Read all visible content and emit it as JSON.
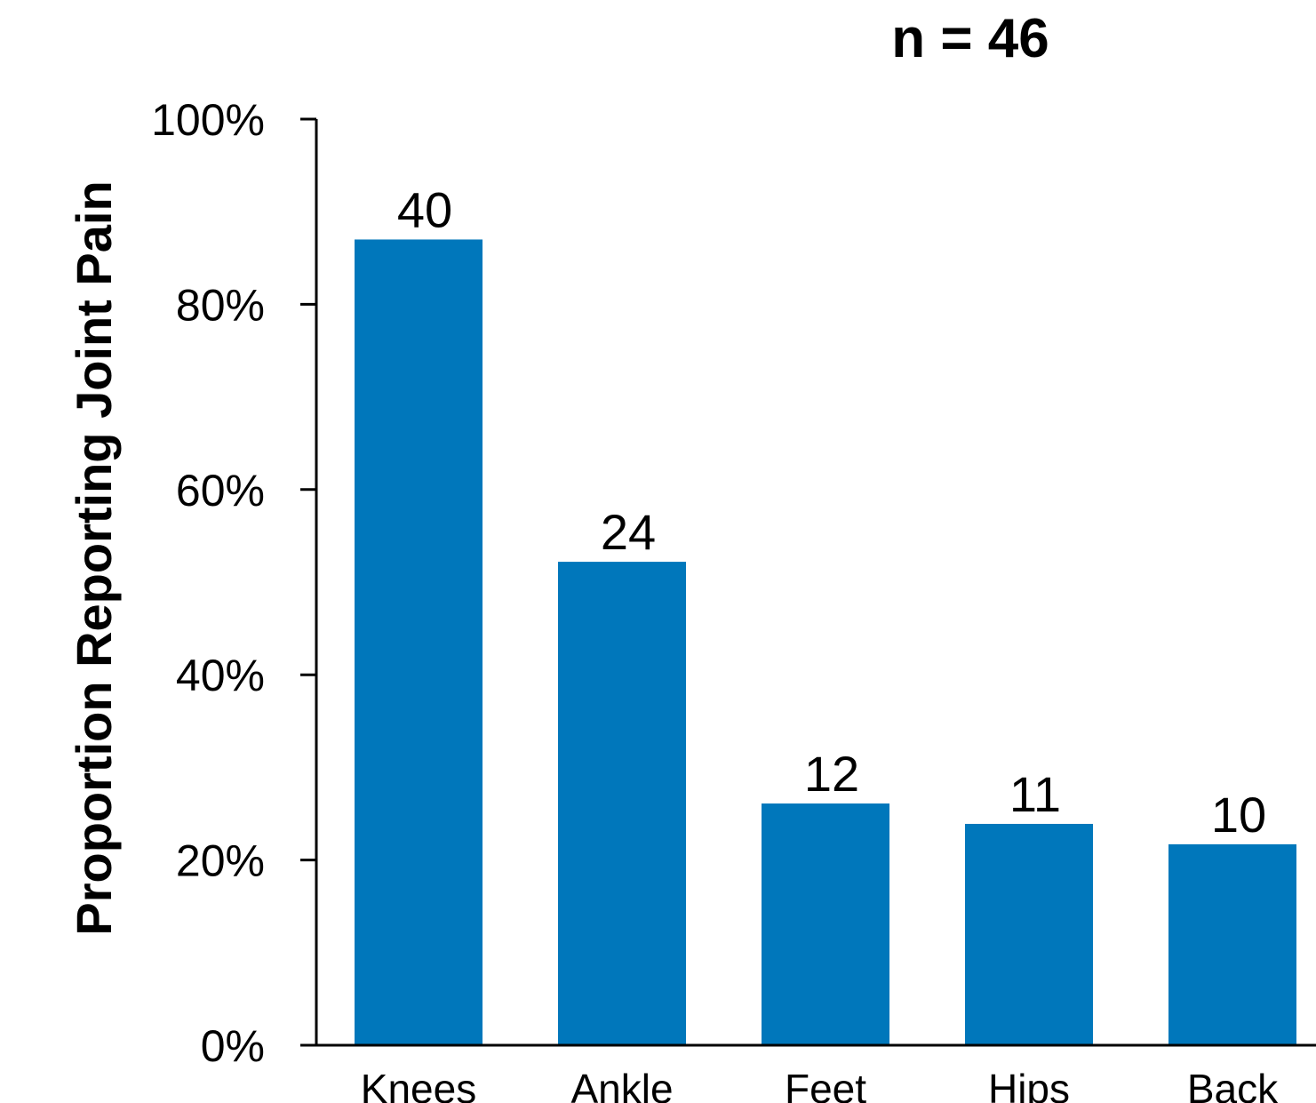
{
  "chart_data": {
    "type": "bar",
    "title": "n = 46",
    "xlabel": "",
    "ylabel": "Proportion Reporting Joint Pain",
    "categories": [
      "Knees",
      "Ankle",
      "Feet",
      "Hips",
      "Back"
    ],
    "values": [
      0.87,
      0.522,
      0.261,
      0.239,
      0.217
    ],
    "data_labels": [
      "40",
      "24",
      "12",
      "11",
      "10"
    ],
    "ylim": [
      0,
      1
    ],
    "yticks": [
      0,
      0.2,
      0.4,
      0.6,
      0.8,
      1.0
    ],
    "ytick_labels": [
      "0%",
      "20%",
      "40%",
      "60%",
      "80%",
      "100%"
    ],
    "bar_color": "#0077BB",
    "grid": false,
    "legend": "none"
  }
}
